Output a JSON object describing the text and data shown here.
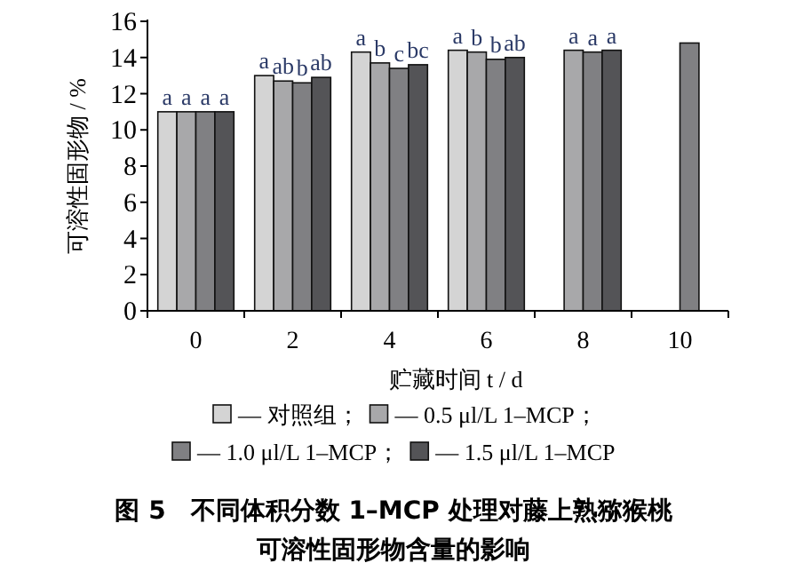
{
  "chart_data": {
    "type": "bar",
    "title": "图 5　不同体积分数 1–MCP 处理对藤上熟猕猴桃可溶性固形物含量的影响",
    "xlabel": "贮藏时间 t / d",
    "ylabel": "可溶性固形物 / %",
    "categories": [
      "0",
      "2",
      "4",
      "6",
      "8",
      "10"
    ],
    "series": [
      {
        "name": "— 对照组；",
        "color": "#d4d4d4",
        "values": [
          11.0,
          13.0,
          14.3,
          14.4,
          null,
          null
        ]
      },
      {
        "name": "— 0.5 μl/L 1–MCP；",
        "color": "#a8a8aa",
        "values": [
          11.0,
          12.7,
          13.7,
          14.3,
          14.4,
          null
        ]
      },
      {
        "name": "— 1.0 μl/L 1–MCP；",
        "color": "#808083",
        "values": [
          11.0,
          12.6,
          13.4,
          13.9,
          14.3,
          14.8
        ]
      },
      {
        "name": "— 1.5 μl/L 1–MCP",
        "color": "#545457",
        "values": [
          11.0,
          12.9,
          13.6,
          14.0,
          14.4,
          null
        ]
      }
    ],
    "ylim": [
      0,
      16
    ],
    "yticks": [
      0,
      2,
      4,
      6,
      8,
      10,
      12,
      14,
      16
    ],
    "grid": false,
    "legend": "bottom",
    "annotations": [
      "a",
      "a",
      "a",
      "a",
      "a",
      "ab",
      "b",
      "ab",
      "a",
      "b",
      "c",
      "bc",
      "a",
      "b",
      "b",
      "ab",
      "a",
      "a",
      "a"
    ]
  }
}
